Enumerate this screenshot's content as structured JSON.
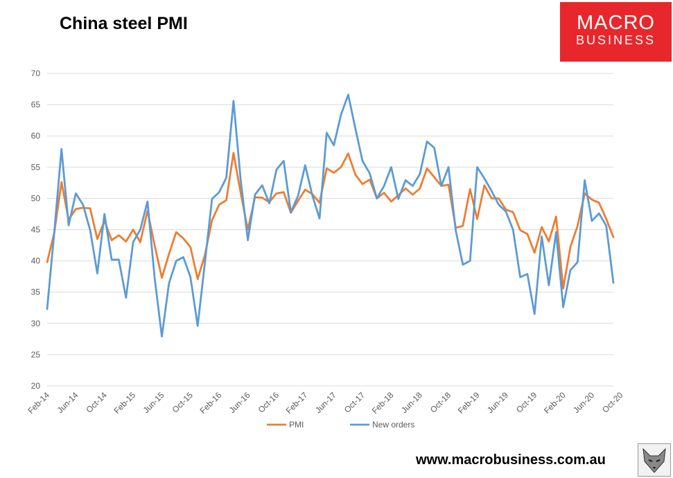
{
  "header": {
    "title": "China steel PMI"
  },
  "logo": {
    "line1": "MACRO",
    "line2": "BUSINESS"
  },
  "footer": {
    "url": "www.macrobusiness.com.au"
  },
  "colors": {
    "pmi": "#ED7D31",
    "new_orders": "#5B9BD5",
    "grid": "#D9D9D9",
    "axis_text": "#595959",
    "logo_bg": "#E8272C"
  },
  "icons": {
    "fox": "fox-head-icon"
  },
  "chart_data": {
    "type": "line",
    "title": "China steel PMI",
    "xlabel": "",
    "ylabel": "",
    "ylim": [
      20,
      70
    ],
    "yticks": [
      20,
      25,
      30,
      35,
      40,
      45,
      50,
      55,
      60,
      65,
      70
    ],
    "grid": "horizontal",
    "legend": "bottom",
    "x_tick_labels": [
      "Feb-14",
      "Jun-14",
      "Oct-14",
      "Feb-15",
      "Jun-15",
      "Oct-15",
      "Feb-16",
      "Jun-16",
      "Oct-16",
      "Feb-17",
      "Jun-17",
      "Oct-17",
      "Feb-18",
      "Jun-18",
      "Oct-18",
      "Feb-19",
      "Jun-19",
      "Oct-19",
      "Feb-20",
      "Jun-20",
      "Oct-20"
    ],
    "start": "Feb-14",
    "end": "Oct-20",
    "series": [
      {
        "name": "PMI",
        "values": [
          39.8,
          44.5,
          52.6,
          46.6,
          48.3,
          48.5,
          48.4,
          43.5,
          46.4,
          43.3,
          44.1,
          43.1,
          45.0,
          43.0,
          48.0,
          42.5,
          37.3,
          41.1,
          44.6,
          43.6,
          42.2,
          37.1,
          40.9,
          46.5,
          49.0,
          49.7,
          57.3,
          50.9,
          45.0,
          50.2,
          50.1,
          49.4,
          50.8,
          51.0,
          47.7,
          49.6,
          51.4,
          50.7,
          49.3,
          54.8,
          54.1,
          55.0,
          57.2,
          53.8,
          52.3,
          53.0,
          50.0,
          50.9,
          49.5,
          50.5,
          51.6,
          50.6,
          51.6,
          54.8,
          53.4,
          52.0,
          52.2,
          45.3,
          45.6,
          51.5,
          46.7,
          52.1,
          50.0,
          50.0,
          48.2,
          47.8,
          44.9,
          44.3,
          41.3,
          45.4,
          43.1,
          47.1,
          35.6,
          42.2,
          45.6,
          50.8,
          49.8,
          49.3,
          46.7,
          43.8
        ]
      },
      {
        "name": "New orders",
        "values": [
          32.3,
          44.6,
          57.9,
          45.7,
          50.8,
          49.0,
          44.9,
          38.0,
          47.5,
          40.2,
          40.2,
          34.1,
          43.0,
          45.0,
          49.5,
          37.3,
          27.9,
          36.4,
          40.0,
          40.6,
          37.4,
          29.6,
          39.6,
          49.9,
          51.0,
          53.3,
          65.6,
          53.0,
          43.3,
          50.6,
          52.1,
          49.2,
          54.6,
          56.0,
          47.8,
          50.4,
          55.3,
          50.5,
          46.8,
          60.5,
          58.5,
          63.4,
          66.6,
          61.2,
          56.0,
          54.0,
          50.0,
          52.0,
          55.0,
          49.9,
          52.9,
          52.0,
          53.9,
          59.1,
          58.1,
          52.0,
          55.0,
          44.9,
          39.4,
          40.0,
          55.0,
          53.2,
          51.2,
          49.0,
          47.9,
          45.0,
          37.4,
          37.9,
          31.5,
          43.9,
          36.1,
          44.6,
          32.6,
          38.5,
          39.8,
          52.9,
          46.4,
          47.6,
          45.6,
          36.5
        ]
      }
    ]
  }
}
